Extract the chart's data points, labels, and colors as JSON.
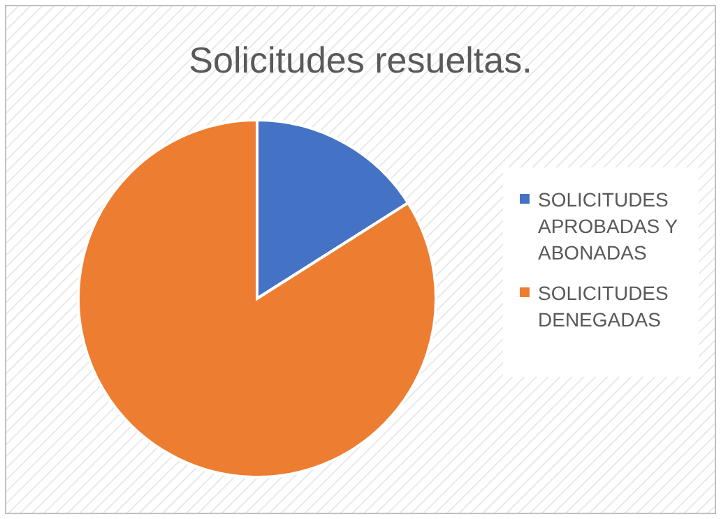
{
  "chart_data": {
    "type": "pie",
    "title": "Solicitudes resueltas.",
    "categories": [
      "SOLICITUDES APROBADAS Y ABONADAS",
      "SOLICITUDES DENEGADAS"
    ],
    "values": [
      16,
      84
    ],
    "colors": [
      "#4472c4",
      "#ed7d31"
    ],
    "legend": "right"
  }
}
